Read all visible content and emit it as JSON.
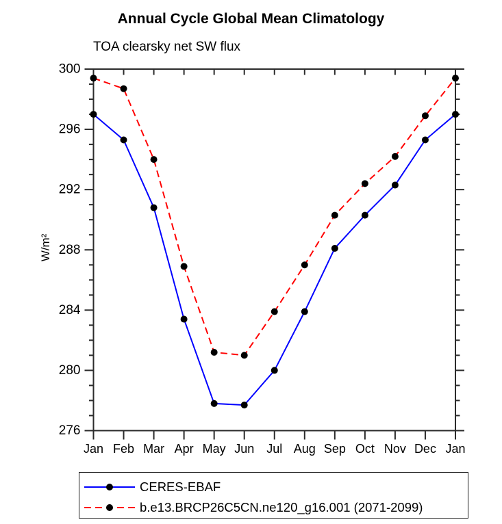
{
  "chart_data": {
    "type": "line",
    "title": "Annual Cycle Global Mean Climatology",
    "subtitle": "TOA clearsky net SW flux",
    "ylabel": "W/m²",
    "xlabel": "",
    "categories": [
      "Jan",
      "Feb",
      "Mar",
      "Apr",
      "May",
      "Jun",
      "Jul",
      "Aug",
      "Sep",
      "Oct",
      "Nov",
      "Dec",
      "Jan"
    ],
    "ylim": [
      276,
      300
    ],
    "ytick_major_step": 4,
    "ytick_minor_step": 1,
    "ytick_labels": [
      "276",
      "280",
      "284",
      "288",
      "292",
      "296",
      "300"
    ],
    "grid": false,
    "legend_position": "bottom",
    "series": [
      {
        "name": "CERES-EBAF",
        "color": "#0000ff",
        "line_style": "solid",
        "marker": "filled-circle",
        "marker_color": "#000000",
        "values": [
          297.0,
          295.3,
          290.8,
          283.4,
          277.8,
          277.7,
          280.0,
          283.9,
          288.1,
          290.3,
          292.3,
          295.3,
          297.0
        ]
      },
      {
        "name": "b.e13.BRCP26C5CN.ne120_g16.001 (2071-2099)",
        "color": "#ff0000",
        "line_style": "dashed",
        "marker": "filled-circle",
        "marker_color": "#000000",
        "values": [
          299.4,
          298.7,
          294.0,
          286.9,
          281.2,
          281.0,
          283.9,
          287.0,
          290.3,
          292.4,
          294.2,
          296.9,
          299.4
        ]
      }
    ]
  },
  "colors": {
    "background": "#ffffff",
    "axis": "#2b2b2b",
    "text": "#000000",
    "series_blue": "#0000ff",
    "series_red": "#ff0000",
    "marker": "#000000"
  }
}
